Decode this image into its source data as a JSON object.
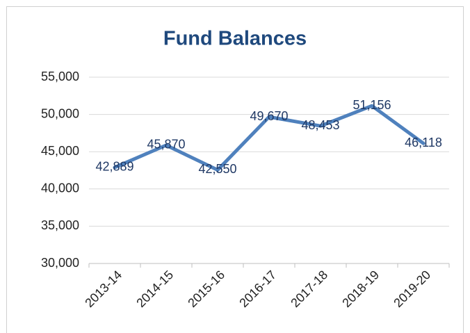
{
  "chart_data": {
    "type": "line",
    "title": "Fund Balances",
    "categories": [
      "2013-14",
      "2014-15",
      "2015-16",
      "2016-17",
      "2017-18",
      "2018-19",
      "2019-20"
    ],
    "values": [
      42889,
      45870,
      42550,
      49670,
      48453,
      51156,
      46118
    ],
    "value_labels": [
      "42,889",
      "45,870",
      "42,550",
      "49,670",
      "48,453",
      "51,156",
      "46,118"
    ],
    "color": "#4f81bd",
    "ylim": [
      30000,
      55000
    ],
    "yticks": [
      {
        "value": 30000,
        "label": "30,000"
      },
      {
        "value": 35000,
        "label": "35,000"
      },
      {
        "value": 40000,
        "label": "40,000"
      },
      {
        "value": 45000,
        "label": "45,000"
      },
      {
        "value": 50000,
        "label": "50,000"
      },
      {
        "value": 55000,
        "label": "55,000"
      }
    ],
    "grid": true
  }
}
